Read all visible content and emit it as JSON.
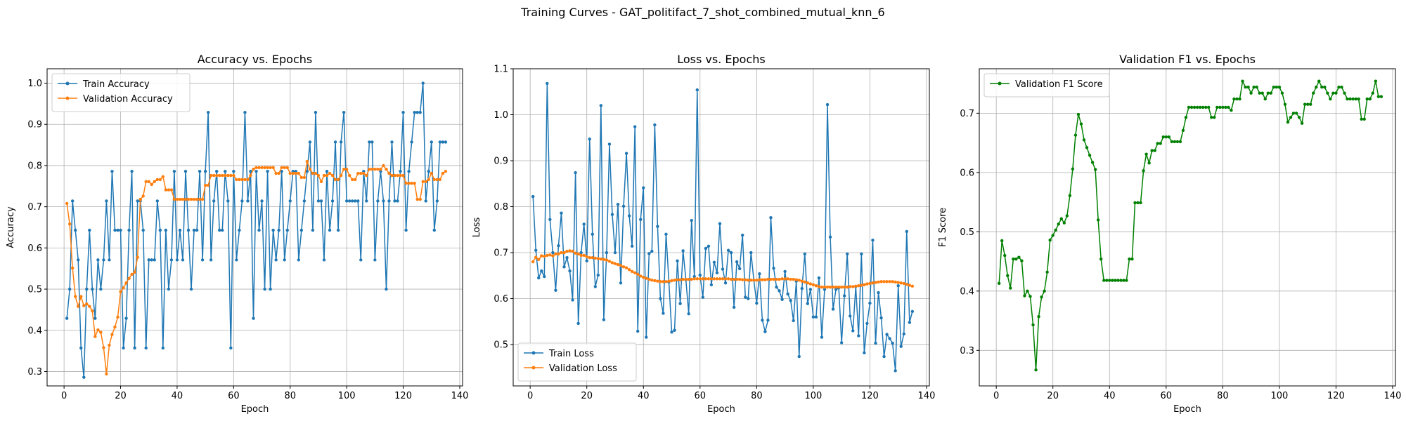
{
  "figure": {
    "suptitle": "Training Curves - GAT_politifact_7_shot_combined_mutual_knn_6"
  },
  "chart_data": [
    {
      "type": "line",
      "title": "Accuracy vs. Epochs",
      "xlabel": "Epoch",
      "ylabel": "Accuracy",
      "xlim": [
        -6,
        141
      ],
      "ylim": [
        0.265,
        1.035
      ],
      "xticks": [
        0,
        20,
        40,
        60,
        80,
        100,
        120,
        140
      ],
      "yticks": [
        0.3,
        0.4,
        0.5,
        0.6,
        0.7,
        0.8,
        0.9,
        1.0
      ],
      "ytick_labels": [
        "0.3",
        "0.4",
        "0.5",
        "0.6",
        "0.7",
        "0.8",
        "0.9",
        "1.0"
      ],
      "grid": true,
      "legend_position": "upper-left",
      "series": [
        {
          "name": "Train Accuracy",
          "color": "#1f77b4",
          "values": [
            0.429,
            0.5,
            0.714,
            0.643,
            0.571,
            0.357,
            0.286,
            0.5,
            0.643,
            0.5,
            0.429,
            0.571,
            0.5,
            0.571,
            0.714,
            0.571,
            0.786,
            0.643,
            0.643,
            0.643,
            0.357,
            0.429,
            0.643,
            0.786,
            0.357,
            0.714,
            0.714,
            0.643,
            0.357,
            0.571,
            0.571,
            0.571,
            0.714,
            0.643,
            0.357,
            0.643,
            0.5,
            0.571,
            0.786,
            0.571,
            0.643,
            0.571,
            0.786,
            0.643,
            0.5,
            0.643,
            0.643,
            0.786,
            0.571,
            0.786,
            0.929,
            0.571,
            0.714,
            0.786,
            0.643,
            0.643,
            0.786,
            0.714,
            0.357,
            0.786,
            0.571,
            0.643,
            0.714,
            0.929,
            0.714,
            0.786,
            0.429,
            0.786,
            0.643,
            0.714,
            0.5,
            0.786,
            0.5,
            0.643,
            0.571,
            0.643,
            0.786,
            0.571,
            0.643,
            0.714,
            0.786,
            0.786,
            0.571,
            0.643,
            0.714,
            0.786,
            0.857,
            0.643,
            0.929,
            0.714,
            0.714,
            0.571,
            0.786,
            0.643,
            0.714,
            0.857,
            0.643,
            0.857,
            0.929,
            0.714,
            0.714,
            0.714,
            0.714,
            0.714,
            0.571,
            0.786,
            0.714,
            0.857,
            0.857,
            0.571,
            0.714,
            0.786,
            0.714,
            0.5,
            0.714,
            0.857,
            0.714,
            0.714,
            0.786,
            0.929,
            0.643,
            0.786,
            0.857,
            0.929,
            0.929,
            0.929,
            1.0,
            0.714,
            0.786,
            0.857,
            0.643,
            0.714,
            0.857,
            0.857,
            0.857
          ]
        },
        {
          "name": "Validation Accuracy",
          "color": "#ff7f0e",
          "values": [
            0.708,
            0.658,
            0.551,
            0.482,
            0.458,
            0.482,
            0.46,
            0.464,
            0.458,
            0.447,
            0.385,
            0.401,
            0.395,
            0.358,
            0.294,
            0.364,
            0.39,
            0.408,
            0.432,
            0.494,
            0.503,
            0.515,
            0.526,
            0.536,
            0.541,
            0.577,
            0.718,
            0.726,
            0.761,
            0.761,
            0.754,
            0.761,
            0.766,
            0.766,
            0.773,
            0.741,
            0.741,
            0.741,
            0.718,
            0.718,
            0.718,
            0.718,
            0.718,
            0.718,
            0.718,
            0.718,
            0.718,
            0.718,
            0.718,
            0.752,
            0.752,
            0.776,
            0.776,
            0.776,
            0.776,
            0.776,
            0.776,
            0.776,
            0.776,
            0.776,
            0.766,
            0.766,
            0.766,
            0.766,
            0.766,
            0.776,
            0.791,
            0.795,
            0.795,
            0.795,
            0.795,
            0.795,
            0.795,
            0.795,
            0.781,
            0.781,
            0.795,
            0.795,
            0.795,
            0.781,
            0.781,
            0.781,
            0.781,
            0.771,
            0.771,
            0.81,
            0.791,
            0.781,
            0.781,
            0.776,
            0.761,
            0.776,
            0.776,
            0.781,
            0.776,
            0.766,
            0.766,
            0.776,
            0.791,
            0.791,
            0.776,
            0.766,
            0.766,
            0.781,
            0.781,
            0.781,
            0.776,
            0.791,
            0.791,
            0.791,
            0.791,
            0.791,
            0.8,
            0.791,
            0.781,
            0.776,
            0.776,
            0.776,
            0.776,
            0.776,
            0.757,
            0.757,
            0.757,
            0.757,
            0.718,
            0.718,
            0.761,
            0.761,
            0.766,
            0.781,
            0.766,
            0.766,
            0.766,
            0.781,
            0.786
          ]
        }
      ]
    },
    {
      "type": "line",
      "title": "Loss vs. Epochs",
      "xlabel": "Epoch",
      "ylabel": "Loss",
      "xlim": [
        -6,
        141
      ],
      "ylim": [
        0.41,
        1.1
      ],
      "xticks": [
        0,
        20,
        40,
        60,
        80,
        100,
        120,
        140
      ],
      "yticks": [
        0.5,
        0.6,
        0.7,
        0.8,
        0.9,
        1.0,
        1.1
      ],
      "ytick_labels": [
        "0.5",
        "0.6",
        "0.7",
        "0.8",
        "0.9",
        "1.0",
        "1.1"
      ],
      "grid": true,
      "legend_position": "lower-left",
      "series": [
        {
          "name": "Train Loss",
          "color": "#1f77b4",
          "values": [
            0.822,
            0.705,
            0.645,
            0.66,
            0.648,
            1.068,
            0.772,
            0.7,
            0.618,
            0.715,
            0.786,
            0.669,
            0.689,
            0.66,
            0.597,
            0.874,
            0.546,
            0.7,
            0.762,
            0.682,
            0.947,
            0.74,
            0.626,
            0.651,
            1.02,
            0.554,
            0.7,
            0.936,
            0.783,
            0.7,
            0.805,
            0.634,
            0.801,
            0.916,
            0.78,
            0.714,
            0.974,
            0.529,
            0.772,
            0.841,
            0.516,
            0.698,
            0.703,
            0.978,
            0.757,
            0.6,
            0.568,
            0.74,
            0.636,
            0.527,
            0.531,
            0.682,
            0.589,
            0.704,
            0.641,
            0.567,
            0.77,
            0.648,
            1.054,
            0.651,
            0.603,
            0.709,
            0.714,
            0.63,
            0.679,
            0.656,
            0.763,
            0.664,
            0.634,
            0.705,
            0.7,
            0.581,
            0.68,
            0.665,
            0.738,
            0.603,
            0.6,
            0.7,
            0.64,
            0.59,
            0.654,
            0.553,
            0.528,
            0.553,
            0.776,
            0.666,
            0.625,
            0.617,
            0.598,
            0.659,
            0.61,
            0.596,
            0.552,
            0.638,
            0.474,
            0.622,
            0.697,
            0.589,
            0.62,
            0.56,
            0.56,
            0.645,
            0.516,
            0.62,
            1.022,
            0.734,
            0.577,
            0.62,
            0.623,
            0.504,
            0.606,
            0.697,
            0.562,
            0.53,
            0.626,
            0.519,
            0.697,
            0.482,
            0.546,
            0.59,
            0.727,
            0.503,
            0.613,
            0.558,
            0.474,
            0.522,
            0.513,
            0.503,
            0.443,
            0.628,
            0.496,
            0.523,
            0.746,
            0.548,
            0.572
          ]
        },
        {
          "name": "Validation Loss",
          "color": "#ff7f0e",
          "values": [
            0.68,
            0.69,
            0.685,
            0.693,
            0.692,
            0.694,
            0.695,
            0.693,
            0.697,
            0.697,
            0.7,
            0.7,
            0.703,
            0.704,
            0.703,
            0.699,
            0.697,
            0.694,
            0.694,
            0.691,
            0.689,
            0.689,
            0.688,
            0.687,
            0.686,
            0.685,
            0.684,
            0.681,
            0.678,
            0.676,
            0.674,
            0.672,
            0.669,
            0.667,
            0.663,
            0.659,
            0.656,
            0.653,
            0.649,
            0.646,
            0.644,
            0.642,
            0.64,
            0.639,
            0.638,
            0.637,
            0.637,
            0.637,
            0.638,
            0.639,
            0.64,
            0.641,
            0.641,
            0.642,
            0.642,
            0.642,
            0.642,
            0.643,
            0.643,
            0.643,
            0.643,
            0.643,
            0.643,
            0.643,
            0.643,
            0.643,
            0.643,
            0.643,
            0.643,
            0.643,
            0.642,
            0.642,
            0.642,
            0.642,
            0.641,
            0.641,
            0.64,
            0.64,
            0.64,
            0.64,
            0.641,
            0.641,
            0.641,
            0.642,
            0.642,
            0.642,
            0.642,
            0.642,
            0.643,
            0.643,
            0.643,
            0.642,
            0.642,
            0.641,
            0.64,
            0.638,
            0.636,
            0.634,
            0.632,
            0.63,
            0.628,
            0.626,
            0.625,
            0.625,
            0.625,
            0.625,
            0.625,
            0.625,
            0.625,
            0.625,
            0.625,
            0.625,
            0.626,
            0.626,
            0.627,
            0.628,
            0.629,
            0.63,
            0.632,
            0.633,
            0.634,
            0.635,
            0.636,
            0.637,
            0.637,
            0.637,
            0.637,
            0.637,
            0.636,
            0.635,
            0.634,
            0.633,
            0.631,
            0.629,
            0.627
          ]
        }
      ]
    },
    {
      "type": "line",
      "title": "Validation F1 vs. Epochs",
      "xlabel": "Epoch",
      "ylabel": "F1 Score",
      "xlim": [
        -6,
        141
      ],
      "ylim": [
        0.24,
        0.775
      ],
      "xticks": [
        0,
        20,
        40,
        60,
        80,
        100,
        120,
        140
      ],
      "yticks": [
        0.3,
        0.4,
        0.5,
        0.6,
        0.7
      ],
      "ytick_labels": [
        "0.3",
        "0.4",
        "0.5",
        "0.6",
        "0.7"
      ],
      "grid": true,
      "legend_position": "upper-left",
      "series": [
        {
          "name": "Validation F1 Score",
          "color": "#008000",
          "values": [
            0.413,
            0.485,
            0.46,
            0.426,
            0.405,
            0.454,
            0.454,
            0.457,
            0.451,
            0.392,
            0.4,
            0.391,
            0.343,
            0.267,
            0.357,
            0.39,
            0.4,
            0.432,
            0.486,
            0.494,
            0.503,
            0.513,
            0.522,
            0.515,
            0.527,
            0.561,
            0.606,
            0.663,
            0.698,
            0.682,
            0.655,
            0.642,
            0.629,
            0.617,
            0.605,
            0.52,
            0.454,
            0.418,
            0.418,
            0.418,
            0.418,
            0.418,
            0.418,
            0.418,
            0.418,
            0.418,
            0.454,
            0.454,
            0.549,
            0.549,
            0.549,
            0.603,
            0.631,
            0.616,
            0.637,
            0.637,
            0.649,
            0.649,
            0.66,
            0.66,
            0.66,
            0.652,
            0.652,
            0.652,
            0.652,
            0.671,
            0.693,
            0.71,
            0.71,
            0.71,
            0.71,
            0.71,
            0.71,
            0.71,
            0.71,
            0.693,
            0.693,
            0.71,
            0.71,
            0.71,
            0.71,
            0.71,
            0.705,
            0.724,
            0.724,
            0.724,
            0.754,
            0.744,
            0.744,
            0.734,
            0.744,
            0.744,
            0.734,
            0.734,
            0.724,
            0.734,
            0.734,
            0.744,
            0.744,
            0.744,
            0.734,
            0.715,
            0.685,
            0.693,
            0.7,
            0.7,
            0.693,
            0.683,
            0.715,
            0.715,
            0.715,
            0.734,
            0.744,
            0.754,
            0.744,
            0.744,
            0.734,
            0.724,
            0.734,
            0.734,
            0.744,
            0.744,
            0.734,
            0.724,
            0.724,
            0.724,
            0.724,
            0.724,
            0.69,
            0.69,
            0.724,
            0.724,
            0.734,
            0.754,
            0.728,
            0.728
          ]
        }
      ]
    }
  ]
}
